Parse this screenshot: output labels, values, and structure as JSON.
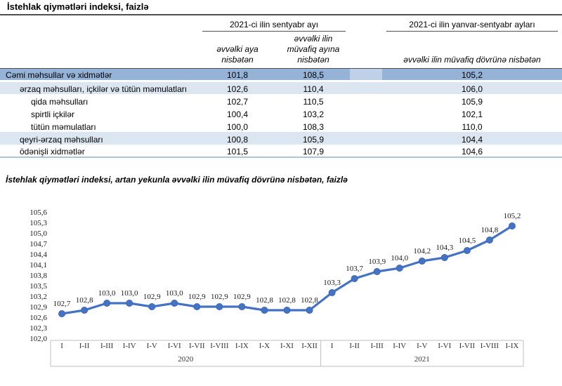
{
  "page_title": "İstehlak qiymətləri indeksi, faizlə",
  "table": {
    "col_groups": [
      {
        "label": "2021-ci ilin sentyabr ayı"
      },
      {
        "label": "2021-ci ilin yanvar-sentyabr ayları"
      }
    ],
    "sub_headers": [
      "əvvəlki aya nisbətən",
      "əvvəlki ilin müvafiq ayına nisbətən",
      "əvvəlki ilin müvafiq dövrünə nisbətən"
    ],
    "rows": [
      {
        "label": "Cəmi məhsullar və xidmətlər",
        "values": [
          "101,8",
          "108,5",
          "105,2"
        ],
        "style": "total",
        "indent": 0
      },
      {
        "label": "ərzaq məhsulları, içkilər və tütün məmulatları",
        "values": [
          "102,6",
          "110,4",
          "106,0"
        ],
        "style": "band",
        "indent": 1
      },
      {
        "label": "qida məhsulları",
        "values": [
          "102,7",
          "110,5",
          "105,9"
        ],
        "style": "plain",
        "indent": 2
      },
      {
        "label": "spirtli içkilər",
        "values": [
          "100,4",
          "103,2",
          "102,1"
        ],
        "style": "plain",
        "indent": 2
      },
      {
        "label": "tütün məmulatları",
        "values": [
          "100,0",
          "108,3",
          "110,0"
        ],
        "style": "plain",
        "indent": 2
      },
      {
        "label": "qeyri-ərzaq məhsulları",
        "values": [
          "100,8",
          "105,9",
          "104,4"
        ],
        "style": "band",
        "indent": 1
      },
      {
        "label": "ödənişli xidmətlər",
        "values": [
          "101,5",
          "107,9",
          "104,6"
        ],
        "style": "plain",
        "indent": 1
      }
    ]
  },
  "chart_data": {
    "type": "line",
    "title": "İstehlak qiymətləri indeksi, artan yekunla əvvəlki ilin müvafiq dövrünə nisbətən, faizlə",
    "groups": [
      {
        "label": "2020",
        "categories": [
          "I",
          "I-II",
          "I-III",
          "I-IV",
          "I-V",
          "I-VI",
          "I-VII",
          "I-VIII",
          "I-IX",
          "I-X",
          "I-XI",
          "I-XII"
        ],
        "values": [
          102.7,
          102.8,
          103.0,
          103.0,
          102.9,
          103.0,
          102.9,
          102.9,
          102.9,
          102.8,
          102.8,
          102.8
        ]
      },
      {
        "label": "2021",
        "categories": [
          "I",
          "I-II",
          "I-III",
          "I-IV",
          "I-V",
          "I-VI",
          "I-VII",
          "I-VIII",
          "I-IX"
        ],
        "values": [
          103.3,
          103.7,
          103.9,
          104.0,
          104.2,
          104.3,
          104.5,
          104.8,
          105.2
        ]
      }
    ],
    "ylim": [
      102.0,
      105.6
    ],
    "y_tick_step": 0.3,
    "decimal_separator": ",",
    "data_labels": true,
    "gridlines": false,
    "legend": "none",
    "line_color": "#4472C4",
    "marker_color": "#4472C4"
  },
  "colors": {
    "total_row_bg": "#95B3D7",
    "total_row_spacer_bg": "#BFD1E8",
    "band_row_bg": "#DCE6F1",
    "header_border": "#4F4F4F",
    "axis_border": "#BFBFBF",
    "line": "#4472C4"
  }
}
